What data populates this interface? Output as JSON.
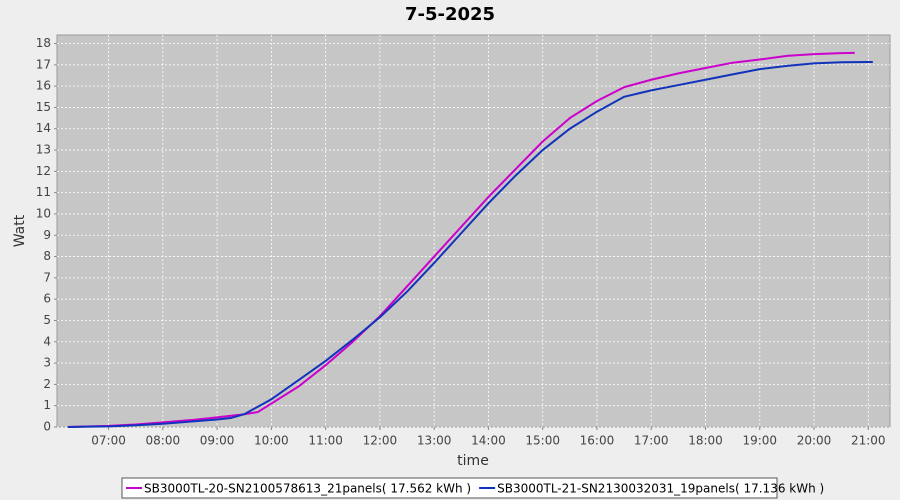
{
  "chart_data": {
    "type": "line",
    "title": "7-5-2025",
    "x_label": "time",
    "y_label": "Watt",
    "xlim": [
      "06:03",
      "21:24"
    ],
    "xticks": [
      "07:00",
      "08:00",
      "09:00",
      "10:00",
      "11:00",
      "12:00",
      "13:00",
      "14:00",
      "15:00",
      "16:00",
      "17:00",
      "18:00",
      "19:00",
      "20:00",
      "21:00"
    ],
    "ylim": [
      0,
      18.4
    ],
    "yticks": [
      0,
      1,
      2,
      3,
      4,
      5,
      6,
      7,
      8,
      9,
      10,
      11,
      12,
      13,
      14,
      15,
      16,
      17,
      18
    ],
    "grid": true,
    "series": [
      {
        "name": "SB3000TL-20-SN2100578613_21panels( 17.562 kWh )",
        "color": "#cc00cc",
        "x": [
          "06:15",
          "06:30",
          "07:00",
          "07:30",
          "08:00",
          "08:30",
          "09:00",
          "09:30",
          "09:45",
          "10:00",
          "10:30",
          "11:00",
          "11:30",
          "12:00",
          "12:30",
          "13:00",
          "13:30",
          "14:00",
          "14:30",
          "15:00",
          "15:30",
          "16:00",
          "16:30",
          "17:00",
          "17:30",
          "18:00",
          "18:30",
          "19:00",
          "19:30",
          "20:00",
          "20:30",
          "20:45"
        ],
        "values": [
          0,
          0.02,
          0.05,
          0.12,
          0.22,
          0.32,
          0.45,
          0.6,
          0.7,
          1.1,
          1.9,
          2.9,
          4.0,
          5.2,
          6.6,
          8.0,
          9.4,
          10.8,
          12.1,
          13.4,
          14.5,
          15.3,
          15.95,
          16.3,
          16.6,
          16.85,
          17.1,
          17.25,
          17.42,
          17.5,
          17.55,
          17.56
        ]
      },
      {
        "name": "SB3000TL-21-SN2130032031_19panels( 17.136 kWh )",
        "color": "#1133bb",
        "x": [
          "06:15",
          "06:30",
          "07:00",
          "07:30",
          "08:00",
          "08:30",
          "09:00",
          "09:15",
          "09:30",
          "10:00",
          "10:30",
          "11:00",
          "11:30",
          "12:00",
          "12:30",
          "13:00",
          "13:30",
          "14:00",
          "14:30",
          "15:00",
          "15:30",
          "16:00",
          "16:30",
          "17:00",
          "17:30",
          "18:00",
          "18:30",
          "19:00",
          "19:30",
          "20:00",
          "20:30",
          "21:00",
          "21:05"
        ],
        "values": [
          0,
          0.01,
          0.03,
          0.08,
          0.15,
          0.25,
          0.35,
          0.42,
          0.6,
          1.3,
          2.2,
          3.1,
          4.1,
          5.15,
          6.35,
          7.7,
          9.1,
          10.5,
          11.8,
          13.0,
          14.0,
          14.8,
          15.5,
          15.8,
          16.05,
          16.3,
          16.55,
          16.8,
          16.95,
          17.07,
          17.12,
          17.13,
          17.13
        ]
      }
    ]
  }
}
